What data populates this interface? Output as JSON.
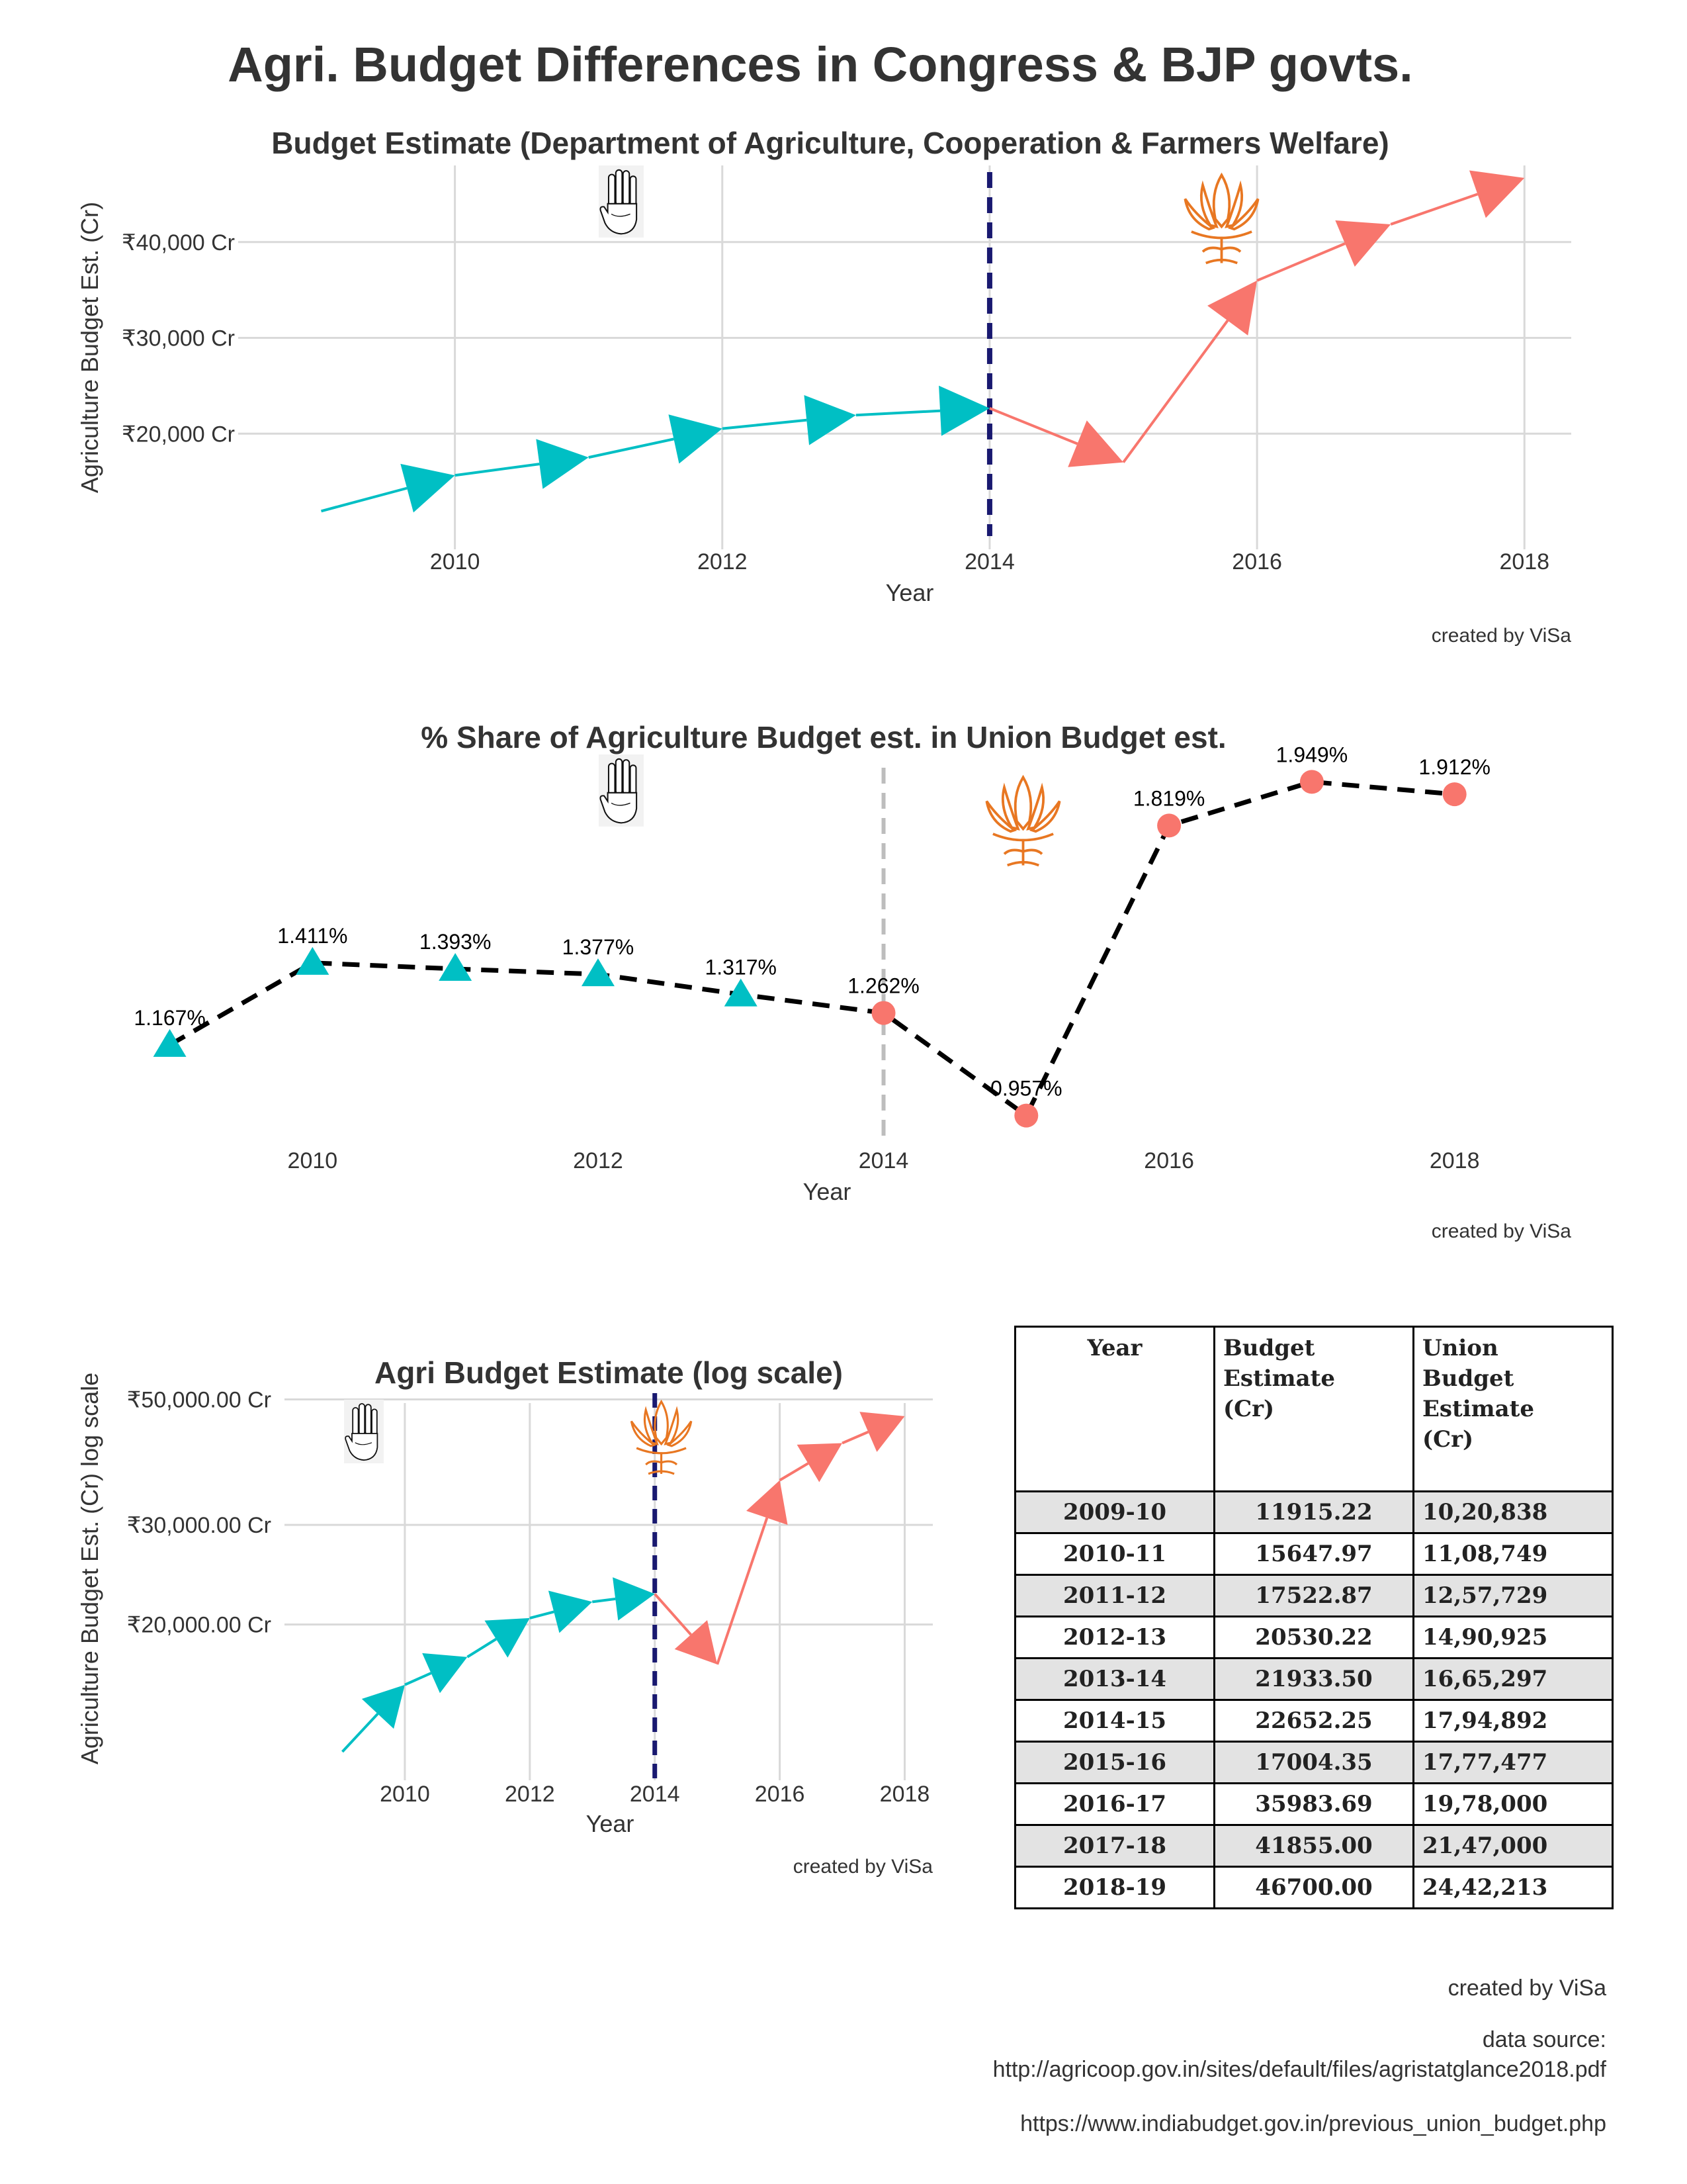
{
  "main_title": "Agri. Budget Differences in Congress & BJP govts.",
  "chart_data": [
    {
      "type": "line",
      "title": "Budget Estimate (Department of Agriculture, Cooperation & Farmers Welfare)",
      "xlabel": "Year",
      "ylabel": "Agriculture Budget Est. (Cr)",
      "x": [
        2009,
        2010,
        2011,
        2012,
        2013,
        2014,
        2015,
        2016,
        2017,
        2018
      ],
      "values": [
        11915.22,
        15647.97,
        17522.87,
        20530.22,
        21933.5,
        22652.25,
        17004.35,
        35983.69,
        41855.0,
        46700.0
      ],
      "xticks": [
        "2010",
        "2012",
        "2014",
        "2016",
        "2018"
      ],
      "yticks": [
        "₹20,000 Cr",
        "₹30,000 Cr",
        "₹40,000 Cr"
      ],
      "ytick_values": [
        20000,
        30000,
        40000
      ],
      "xlim": [
        2008.75,
        2018.35
      ],
      "ylim": [
        10000,
        48000
      ],
      "vline": 2014,
      "caption": "created by ViSa",
      "congress_color": "#00BFC4",
      "bjp_color": "#F8766D",
      "vline_color": "#191970"
    },
    {
      "type": "line",
      "title": "% Share of Agriculture Budget est. in Union Budget est.",
      "xlabel": "Year",
      "ylabel": "",
      "x": [
        2009,
        2010,
        2011,
        2012,
        2013,
        2014,
        2015,
        2016,
        2017,
        2018
      ],
      "values": [
        1.167,
        1.411,
        1.393,
        1.377,
        1.317,
        1.262,
        0.957,
        1.819,
        1.949,
        1.912
      ],
      "labels": [
        "1.167%",
        "1.411%",
        "1.393%",
        "1.377%",
        "1.317%",
        "1.262%",
        "0.957%",
        "1.819%",
        "1.949%",
        "1.912%"
      ],
      "xticks": [
        "2010",
        "2012",
        "2014",
        "2016",
        "2018"
      ],
      "xlim": [
        2008.9,
        2018.4
      ],
      "ylim": [
        0.85,
        2.05
      ],
      "vline": 2014,
      "caption": "created by ViSa",
      "congress_color": "#00BFC4",
      "bjp_color": "#F8766D",
      "vline_color": "#bdbdbd"
    },
    {
      "type": "line",
      "title": "Agri Budget Estimate (log scale)",
      "xlabel": "Year",
      "ylabel": "Agriculture Budget Est. (Cr) log scale",
      "log_scale": true,
      "x": [
        2009,
        2010,
        2011,
        2012,
        2013,
        2014,
        2015,
        2016,
        2017,
        2018
      ],
      "values": [
        11915.22,
        15647.97,
        17522.87,
        20530.22,
        21933.5,
        22652.25,
        17004.35,
        35983.69,
        41855.0,
        46700.0
      ],
      "xticks": [
        "2010",
        "2012",
        "2014",
        "2016",
        "2018"
      ],
      "yticks": [
        "₹20,000.00 Cr",
        "₹30,000.00 Cr",
        "₹50,000.00 Cr"
      ],
      "ytick_values": [
        20000,
        30000,
        50000
      ],
      "xlim": [
        2008.55,
        2018.45
      ],
      "ylim": [
        11500,
        52000
      ],
      "vline": 2014,
      "caption": "created by ViSa",
      "congress_color": "#00BFC4",
      "bjp_color": "#F8766D",
      "vline_color": "#191970"
    },
    {
      "type": "table",
      "columns": [
        "Year",
        "Budget Estimate (Cr)",
        "Union Budget Estimate (Cr)"
      ],
      "rows": [
        [
          "2009-10",
          "11915.22",
          "10,20,838"
        ],
        [
          "2010-11",
          "15647.97",
          "11,08,749"
        ],
        [
          "2011-12",
          "17522.87",
          "12,57,729"
        ],
        [
          "2012-13",
          "20530.22",
          "14,90,925"
        ],
        [
          "2013-14",
          "21933.50",
          "16,65,297"
        ],
        [
          "2014-15",
          "22652.25",
          "17,94,892"
        ],
        [
          "2015-16",
          "17004.35",
          "17,77,477"
        ],
        [
          "2016-17",
          "35983.69",
          "19,78,000"
        ],
        [
          "2017-18",
          "41855.00",
          "21,47,000"
        ],
        [
          "2018-19",
          "46700.00",
          "24,42,213"
        ]
      ]
    }
  ],
  "table": {
    "header_year": "Year",
    "header_budget": [
      "Budget",
      "Estimate",
      "(Cr)"
    ],
    "header_union": [
      "Union",
      "Budget",
      "Estimate",
      "(Cr)"
    ]
  },
  "footer": {
    "created": "created by ViSa",
    "source_label": "data source:",
    "source_1": "http://agricoop.gov.in/sites/default/files/agristatglance2018.pdf",
    "source_2": "https://www.indiabudget.gov.in/previous_union_budget.php"
  },
  "icons": {
    "congress": "congress-hand-icon",
    "bjp": "bjp-lotus-icon"
  }
}
